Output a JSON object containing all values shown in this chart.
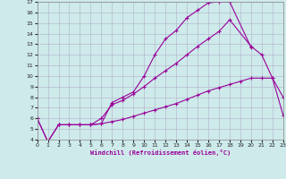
{
  "bg_color": "#ceeaea",
  "grid_color": "#b0b0cc",
  "line_color": "#990099",
  "xlabel": "Windchill (Refroidissement éolien,°C)",
  "xlim": [
    0,
    23
  ],
  "ylim": [
    4,
    17
  ],
  "xticks": [
    0,
    1,
    2,
    3,
    4,
    5,
    6,
    7,
    8,
    9,
    10,
    11,
    12,
    13,
    14,
    15,
    16,
    17,
    18,
    19,
    20,
    21,
    22,
    23
  ],
  "yticks": [
    4,
    5,
    6,
    7,
    8,
    9,
    10,
    11,
    12,
    13,
    14,
    15,
    16,
    17
  ],
  "line1_x": [
    0,
    1,
    2,
    3,
    4,
    5,
    6,
    7,
    8,
    9,
    10,
    11,
    12,
    13,
    14,
    15,
    16,
    17,
    18,
    20
  ],
  "line1_y": [
    6.0,
    3.8,
    5.4,
    5.4,
    5.4,
    5.4,
    5.5,
    7.5,
    8.0,
    8.5,
    10.0,
    12.0,
    13.5,
    14.3,
    15.5,
    16.2,
    16.9,
    17.0,
    17.0,
    12.7
  ],
  "line2_x": [
    2,
    3,
    4,
    5,
    6,
    7,
    8,
    9,
    10,
    11,
    12,
    13,
    14,
    15,
    16,
    17,
    18,
    20,
    21,
    22,
    23
  ],
  "line2_y": [
    5.4,
    5.4,
    5.4,
    5.4,
    6.0,
    7.3,
    7.7,
    8.3,
    9.0,
    9.8,
    10.5,
    11.2,
    12.0,
    12.8,
    13.5,
    14.2,
    15.3,
    12.8,
    12.0,
    9.8,
    8.0
  ],
  "line3_x": [
    0,
    1,
    2,
    3,
    4,
    5,
    6,
    7,
    8,
    9,
    10,
    11,
    12,
    13,
    14,
    15,
    16,
    17,
    18,
    19,
    20,
    21,
    22,
    23
  ],
  "line3_y": [
    6.0,
    3.8,
    5.4,
    5.4,
    5.4,
    5.4,
    5.5,
    5.7,
    5.9,
    6.2,
    6.5,
    6.8,
    7.1,
    7.4,
    7.8,
    8.2,
    8.6,
    8.9,
    9.2,
    9.5,
    9.8,
    9.8,
    9.8,
    6.3
  ]
}
